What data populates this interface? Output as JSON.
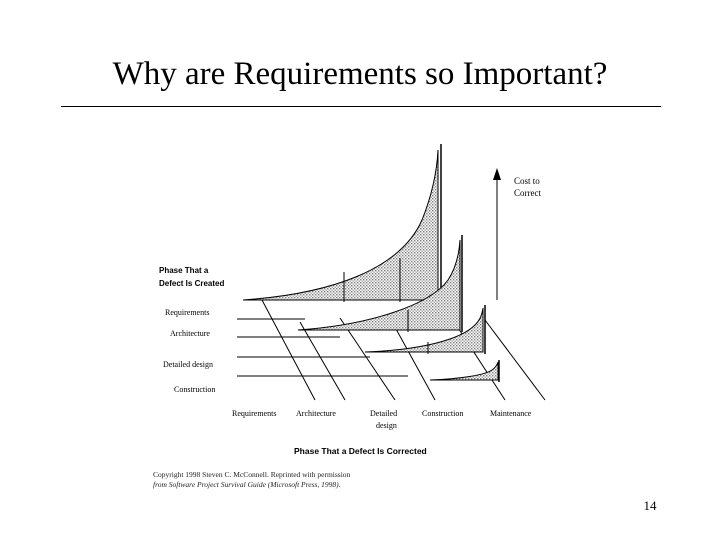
{
  "slide": {
    "title": "Why are Requirements so Important?",
    "page_number": "14"
  },
  "figure": {
    "cost_label_line1": "Cost to",
    "cost_label_line2": "Correct",
    "created_header_line1": "Phase That a",
    "created_header_line2": "Defect Is Created",
    "created_phases": [
      "Requirements",
      "Architecture",
      "Detailed design",
      "Construction"
    ],
    "corrected_phases": [
      "Requirements",
      "Architecture",
      "Detailed",
      "Construction",
      "Maintenance"
    ],
    "corrected_phase_3_line2": "design",
    "corrected_header": "Phase That a Defect Is Corrected",
    "copyright_line1": "Copyright 1998 Steven C. McConnell. Reprinted with permission",
    "copyright_line2": "from Software Project Survival Guide (Microsoft Press, 1998)."
  },
  "colors": {
    "background": "#ffffff",
    "ink": "#000000",
    "shading": "#b8b8b8"
  }
}
